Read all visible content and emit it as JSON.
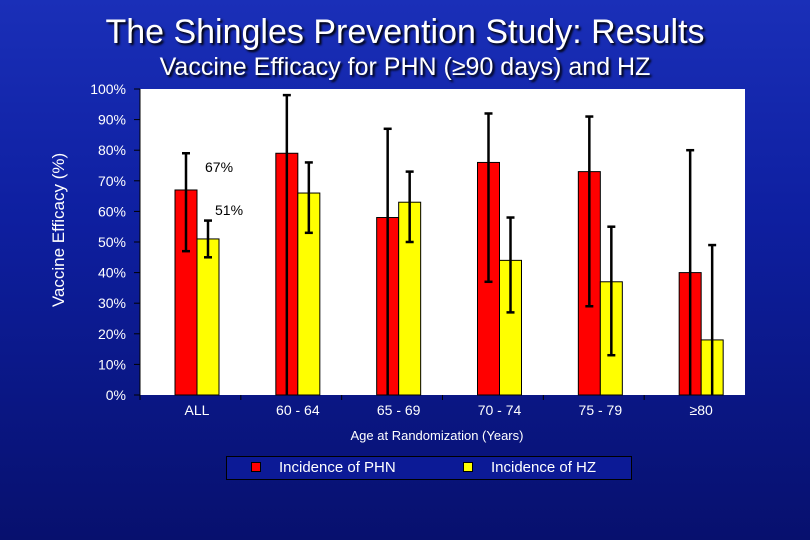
{
  "header": {
    "title": "The Shingles Prevention Study: Results",
    "subtitle": "Vaccine Efficacy for PHN (≥90 days) and HZ"
  },
  "colors": {
    "phn": "#ff0000",
    "hz": "#ffff00",
    "error_bar": "#000000",
    "plot_bg": "#ffffff"
  },
  "chart_data": {
    "type": "bar",
    "title": "Vaccine Efficacy for PHN (≥90 days) and HZ",
    "xlabel": "Age at Randomization (Years)",
    "ylabel": "Vaccine Efficacy (%)",
    "ylim": [
      0,
      100
    ],
    "yticks": [
      "0%",
      "10%",
      "20%",
      "30%",
      "40%",
      "50%",
      "60%",
      "70%",
      "80%",
      "90%",
      "100%"
    ],
    "categories": [
      "ALL",
      "60 - 64",
      "65 - 69",
      "70 - 74",
      "75 - 79",
      "≥80"
    ],
    "series": [
      {
        "name": "Incidence of PHN",
        "values": [
          67,
          79,
          58,
          76,
          73,
          40
        ],
        "ci_low": [
          47,
          0,
          0,
          37,
          29,
          0
        ],
        "ci_high": [
          79,
          98,
          87,
          92,
          91,
          80
        ]
      },
      {
        "name": "Incidence of HZ",
        "values": [
          51,
          66,
          63,
          44,
          37,
          18
        ],
        "ci_low": [
          45,
          53,
          50,
          27,
          13,
          0
        ],
        "ci_high": [
          57,
          76,
          73,
          58,
          55,
          49
        ]
      }
    ],
    "annotations": [
      {
        "text": "67%",
        "series": 0,
        "category": 0
      },
      {
        "text": "51%",
        "series": 1,
        "category": 0
      }
    ],
    "legend_position": "bottom"
  }
}
